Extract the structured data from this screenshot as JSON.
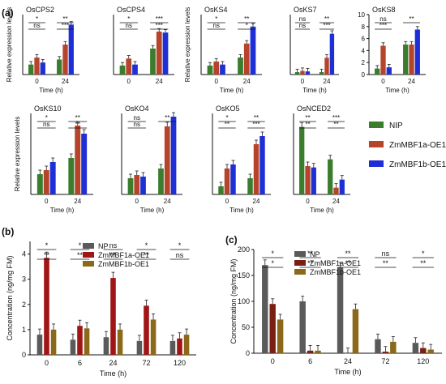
{
  "panel_labels": {
    "a": "(a)",
    "b": "(b)",
    "c": "(c)"
  },
  "legend_a": [
    {
      "name": "NIP",
      "color": "#3a7d2c"
    },
    {
      "name": "ZmMBF1a-OE1",
      "color": "#b5442b"
    },
    {
      "name": "ZmMBF1b-OE1",
      "color": "#1f2fd6"
    }
  ],
  "chart_data": [
    {
      "type": "bar",
      "title": "OsCPS2",
      "xlabel": "Time (h)",
      "ylabel": "Relative expression levels",
      "categories": [
        "0",
        "24"
      ],
      "colors": [
        "#3a7d2c",
        "#b5442b",
        "#1f2fd6"
      ],
      "ylim": [
        0,
        6
      ],
      "yticks": [],
      "series": [
        {
          "name": "NIP",
          "values": [
            1.0,
            1.5
          ]
        },
        {
          "name": "ZmMBF1a-OE1",
          "values": [
            1.7,
            3.0
          ]
        },
        {
          "name": "ZmMBF1b-OE1",
          "values": [
            1.2,
            5.0
          ]
        }
      ],
      "annotations": [
        "*",
        "ns",
        "**",
        "***"
      ]
    },
    {
      "type": "bar",
      "title": "OsCPS4",
      "xlabel": "",
      "ylabel": "",
      "categories": [
        "0",
        "24"
      ],
      "colors": [
        "#3a7d2c",
        "#b5442b",
        "#1f2fd6"
      ],
      "ylim": [
        0,
        6
      ],
      "yticks": [],
      "series": [
        {
          "name": "NIP",
          "values": [
            0.9,
            2.6
          ]
        },
        {
          "name": "ZmMBF1a-OE1",
          "values": [
            1.6,
            4.3
          ]
        },
        {
          "name": "ZmMBF1b-OE1",
          "values": [
            1.0,
            4.2
          ]
        }
      ],
      "annotations": [
        "*",
        "ns",
        "***",
        "***"
      ]
    },
    {
      "type": "bar",
      "title": "OsKS4",
      "xlabel": "Time (h)",
      "ylabel": "Relative expression levels",
      "categories": [
        "0",
        "24"
      ],
      "colors": [
        "#3a7d2c",
        "#b5442b",
        "#1f2fd6"
      ],
      "ylim": [
        0,
        6
      ],
      "yticks": [],
      "series": [
        {
          "name": "NIP",
          "values": [
            0.9,
            1.7
          ]
        },
        {
          "name": "ZmMBF1a-OE1",
          "values": [
            1.3,
            3.1
          ]
        },
        {
          "name": "ZmMBF1b-OE1",
          "values": [
            1.0,
            4.8
          ]
        }
      ],
      "annotations": [
        "*",
        "ns",
        "**",
        "*"
      ]
    },
    {
      "type": "bar",
      "title": "OsKS7",
      "xlabel": "Time (h)",
      "ylabel": "",
      "categories": [
        "0",
        "24"
      ],
      "colors": [
        "#3a7d2c",
        "#b5442b",
        "#1f2fd6"
      ],
      "ylim": [
        0,
        25
      ],
      "yticks": [],
      "series": [
        {
          "name": "NIP",
          "values": [
            1.0,
            1.0
          ]
        },
        {
          "name": "ZmMBF1a-OE1",
          "values": [
            1.5,
            7.0
          ]
        },
        {
          "name": "ZmMBF1b-OE1",
          "values": [
            1.3,
            17.0
          ]
        }
      ],
      "annotations": [
        "ns",
        "ns",
        "**",
        "***"
      ]
    },
    {
      "type": "bar",
      "title": "OsKS8",
      "xlabel": "Time (h)",
      "ylabel": "",
      "categories": [
        "0",
        "24"
      ],
      "colors": [
        "#3a7d2c",
        "#b5442b",
        "#1f2fd6"
      ],
      "ylim": [
        0,
        10
      ],
      "yticks": [
        0,
        2,
        4,
        6,
        8,
        10
      ],
      "series": [
        {
          "name": "NIP",
          "values": [
            1.0,
            5.0
          ]
        },
        {
          "name": "ZmMBF1a-OE1",
          "values": [
            4.8,
            5.0
          ]
        },
        {
          "name": "ZmMBF1b-OE1",
          "values": [
            1.2,
            7.5
          ]
        }
      ],
      "annotations": [
        "ns",
        "***",
        "**"
      ]
    },
    {
      "type": "bar",
      "title": "OsKS10",
      "xlabel": "Time (h)",
      "ylabel": "Relative expression levels",
      "categories": [
        "0",
        "24"
      ],
      "colors": [
        "#3a7d2c",
        "#b5442b",
        "#1f2fd6"
      ],
      "ylim": [
        0,
        4
      ],
      "yticks": [],
      "series": [
        {
          "name": "NIP",
          "values": [
            1.0,
            1.8
          ]
        },
        {
          "name": "ZmMBF1a-OE1",
          "values": [
            1.2,
            3.4
          ]
        },
        {
          "name": "ZmMBF1b-OE1",
          "values": [
            1.6,
            3.0
          ]
        }
      ],
      "annotations": [
        "*",
        "ns",
        "**",
        "**"
      ]
    },
    {
      "type": "bar",
      "title": "OsKO4",
      "xlabel": "Time (h)",
      "ylabel": "",
      "categories": [
        "0",
        "24"
      ],
      "colors": [
        "#3a7d2c",
        "#b5442b",
        "#1f2fd6"
      ],
      "ylim": [
        0,
        5
      ],
      "yticks": [],
      "series": [
        {
          "name": "NIP",
          "values": [
            1.0,
            1.6
          ]
        },
        {
          "name": "ZmMBF1a-OE1",
          "values": [
            1.2,
            4.2
          ]
        },
        {
          "name": "ZmMBF1b-OE1",
          "values": [
            1.1,
            4.8
          ]
        }
      ],
      "annotations": [
        "ns",
        "ns",
        "**"
      ]
    },
    {
      "type": "bar",
      "title": "OsKO5",
      "xlabel": "Time (h)",
      "ylabel": "",
      "categories": [
        "0",
        "24"
      ],
      "colors": [
        "#3a7d2c",
        "#b5442b",
        "#1f2fd6"
      ],
      "ylim": [
        0,
        10
      ],
      "yticks": [],
      "series": [
        {
          "name": "NIP",
          "values": [
            1.0,
            2.0
          ]
        },
        {
          "name": "ZmMBF1a-OE1",
          "values": [
            3.2,
            6.2
          ]
        },
        {
          "name": "ZmMBF1b-OE1",
          "values": [
            3.7,
            7.2
          ]
        }
      ],
      "annotations": [
        "*",
        "**",
        "**",
        "***"
      ]
    },
    {
      "type": "bar",
      "title": "OsNCED2",
      "xlabel": "Time (h)",
      "ylabel": "",
      "categories": [
        "0",
        "24"
      ],
      "colors": [
        "#3a7d2c",
        "#b5442b",
        "#1f2fd6"
      ],
      "ylim": [
        0,
        1.2
      ],
      "yticks": [],
      "series": [
        {
          "name": "NIP",
          "values": [
            1.0,
            0.52
          ]
        },
        {
          "name": "ZmMBF1a-OE1",
          "values": [
            0.42,
            0.1
          ]
        },
        {
          "name": "ZmMBF1b-OE1",
          "values": [
            0.4,
            0.22
          ]
        }
      ],
      "annotations": [
        "**",
        "**",
        "***",
        "**"
      ]
    },
    {
      "type": "bar",
      "title": "",
      "xlabel": "Time (h)",
      "ylabel": "Concentration (ng/mg FM)",
      "categories": [
        "0",
        "6",
        "24",
        "72",
        "120"
      ],
      "colors": [
        "#5a5a5a",
        "#a01515",
        "#8a6a1a"
      ],
      "ylim": [
        0,
        4.5
      ],
      "yticks": [
        0,
        1,
        2,
        3,
        4
      ],
      "series": [
        {
          "name": "NP",
          "values": [
            0.8,
            0.6,
            0.7,
            0.55,
            0.55
          ]
        },
        {
          "name": "ZmMBF1a-OE1",
          "values": [
            3.85,
            1.15,
            3.05,
            1.95,
            0.65
          ]
        },
        {
          "name": "ZmMBF1b-OE1",
          "values": [
            1.0,
            1.05,
            1.0,
            1.4,
            0.8
          ]
        }
      ],
      "annotations": [
        "*",
        "**",
        "*",
        "**",
        "ns",
        "**",
        "*",
        "**",
        "*",
        "ns"
      ]
    },
    {
      "type": "bar",
      "title": "",
      "xlabel": "Time (h)",
      "ylabel": "Concentration (ng/mg FM)",
      "categories": [
        "0",
        "6",
        "24",
        "72",
        "120"
      ],
      "colors": [
        "#5a5a5a",
        "#7a1f14",
        "#8a6a1a"
      ],
      "ylim": [
        0,
        200
      ],
      "yticks": [
        0,
        50,
        100,
        150,
        200
      ],
      "series": [
        {
          "name": "NP",
          "values": [
            170,
            100,
            165,
            27,
            20
          ]
        },
        {
          "name": "ZmMBF1a-OE1",
          "values": [
            95,
            5,
            0,
            3,
            10
          ]
        },
        {
          "name": "ZmMBF1b-OE1",
          "values": [
            65,
            5,
            85,
            22,
            7
          ]
        }
      ],
      "annotations": [
        "*",
        "*",
        "**",
        "**",
        "**",
        "**",
        "ns",
        "**",
        "*",
        "**"
      ]
    }
  ]
}
